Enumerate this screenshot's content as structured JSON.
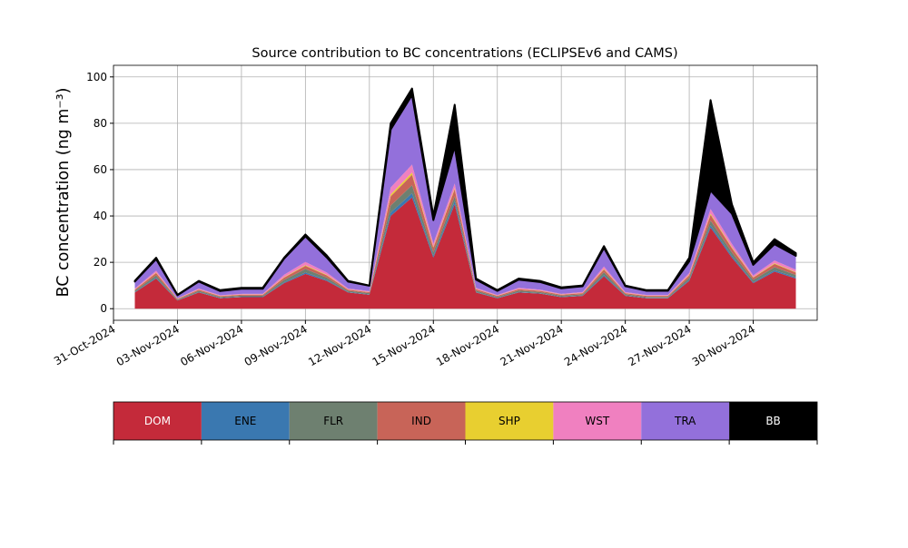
{
  "chart_data": {
    "type": "stacked_area",
    "title": "Source contribution to BC concentrations (ECLIPSEv6 and CAMS)",
    "ylabel": "BC concentration (ng m⁻³)",
    "x": [
      "01-Nov-2024",
      "02-Nov-2024",
      "03-Nov-2024",
      "04-Nov-2024",
      "05-Nov-2024",
      "06-Nov-2024",
      "07-Nov-2024",
      "08-Nov-2024",
      "09-Nov-2024",
      "10-Nov-2024",
      "11-Nov-2024",
      "12-Nov-2024",
      "13-Nov-2024",
      "14-Nov-2024",
      "15-Nov-2024",
      "16-Nov-2024",
      "17-Nov-2024",
      "18-Nov-2024",
      "19-Nov-2024",
      "20-Nov-2024",
      "21-Nov-2024",
      "22-Nov-2024",
      "23-Nov-2024",
      "24-Nov-2024",
      "25-Nov-2024",
      "26-Nov-2024",
      "27-Nov-2024",
      "28-Nov-2024",
      "29-Nov-2024",
      "30-Nov-2024",
      "01-Dec-2024",
      "02-Dec-2024"
    ],
    "series": [
      {
        "name": "DOM",
        "color": "#c42a3a",
        "values": [
          7,
          13,
          3.5,
          7,
          4.5,
          5,
          5,
          11,
          15,
          12,
          7,
          6,
          40,
          48,
          22,
          45,
          7,
          4.5,
          7,
          6.5,
          5,
          5.5,
          14,
          5.5,
          4.5,
          4.5,
          12,
          35,
          22,
          11,
          16,
          13
        ]
      },
      {
        "name": "ENE",
        "color": "#3a78b0",
        "values": [
          0.2,
          0.4,
          0.1,
          0.2,
          0.2,
          0.2,
          0.2,
          0.4,
          0.6,
          0.4,
          0.2,
          0.2,
          1.5,
          1.8,
          0.8,
          1.5,
          0.2,
          0.2,
          0.2,
          0.2,
          0.2,
          0.2,
          0.5,
          0.2,
          0.2,
          0.2,
          0.4,
          1,
          0.8,
          0.4,
          0.6,
          0.5
        ]
      },
      {
        "name": "FLR",
        "color": "#6e8070",
        "values": [
          0.5,
          1,
          0.3,
          0.5,
          0.4,
          0.4,
          0.4,
          1,
          1.5,
          1,
          0.5,
          0.5,
          3,
          3.5,
          1.5,
          2,
          0.6,
          0.4,
          0.6,
          0.5,
          0.4,
          0.5,
          1.2,
          0.5,
          0.4,
          0.4,
          1,
          2,
          1.5,
          1,
          1.3,
          1
        ]
      },
      {
        "name": "IND",
        "color": "#c86458",
        "values": [
          0.5,
          1,
          0.3,
          0.5,
          0.3,
          0.4,
          0.4,
          1,
          1.4,
          1,
          0.5,
          0.4,
          4,
          4.5,
          2,
          3,
          0.6,
          0.4,
          0.6,
          0.5,
          0.4,
          0.5,
          1.2,
          0.5,
          0.4,
          0.4,
          1,
          2.5,
          1.8,
          1,
          1.4,
          1.1
        ]
      },
      {
        "name": "SHP",
        "color": "#e8cf30",
        "values": [
          0.1,
          0.2,
          0.1,
          0.1,
          0.1,
          0.1,
          0.1,
          0.2,
          0.3,
          0.2,
          0.1,
          0.1,
          0.8,
          0.9,
          0.4,
          0.5,
          0.1,
          0.1,
          0.1,
          0.1,
          0.1,
          0.1,
          0.3,
          0.1,
          0.1,
          0.1,
          0.2,
          0.5,
          0.4,
          0.2,
          0.3,
          0.2
        ]
      },
      {
        "name": "WST",
        "color": "#f080c0",
        "values": [
          0.4,
          0.8,
          0.2,
          0.4,
          0.3,
          0.3,
          0.3,
          1,
          1.4,
          1,
          0.4,
          0.4,
          3,
          3.5,
          1.5,
          2,
          0.5,
          0.3,
          0.5,
          0.4,
          0.3,
          0.4,
          1,
          0.4,
          0.3,
          0.3,
          0.8,
          2,
          1.5,
          0.8,
          1.2,
          1
        ]
      },
      {
        "name": "TRA",
        "color": "#9370db",
        "values": [
          3,
          5,
          1.3,
          3,
          1.8,
          2.2,
          2.2,
          7,
          11,
          6.5,
          3,
          2.3,
          25,
          30,
          10,
          16,
          3.5,
          1.8,
          3.5,
          3.3,
          2.4,
          2.5,
          8,
          2.5,
          1.8,
          1.8,
          5,
          8,
          13,
          4.5,
          7,
          6
        ]
      },
      {
        "name": "BB",
        "color": "#000000",
        "values": [
          0.3,
          0.6,
          0.2,
          0.3,
          0.4,
          0.4,
          0.4,
          0.4,
          0.8,
          0.9,
          0.3,
          0.1,
          2.7,
          2.8,
          1.8,
          18,
          0.5,
          0.3,
          0.5,
          0.5,
          0.4,
          0.3,
          0.8,
          0.3,
          0.3,
          0.3,
          1.6,
          39,
          4,
          1.1,
          2.2,
          1.2
        ]
      }
    ],
    "xlim": [
      "31-Oct-2024",
      "03-Dec-2024"
    ],
    "xticks": [
      "31-Oct-2024",
      "03-Nov-2024",
      "06-Nov-2024",
      "09-Nov-2024",
      "12-Nov-2024",
      "15-Nov-2024",
      "18-Nov-2024",
      "21-Nov-2024",
      "24-Nov-2024",
      "27-Nov-2024",
      "30-Nov-2024"
    ],
    "ylim": [
      -5,
      105
    ],
    "yticks": [
      0,
      20,
      40,
      60,
      80,
      100
    ],
    "grid": true,
    "legend": "bottom"
  }
}
